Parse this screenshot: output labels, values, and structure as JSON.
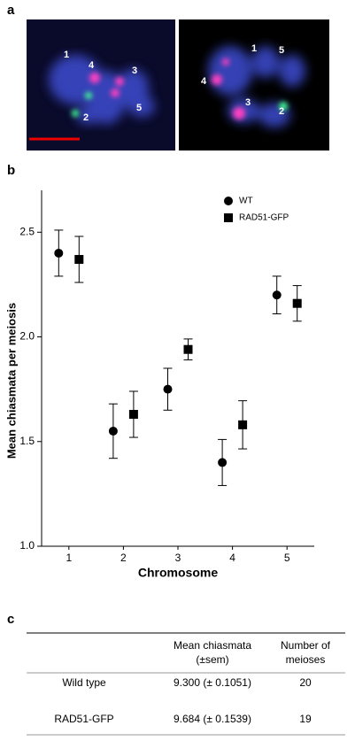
{
  "panel_a": {
    "label": "a",
    "left_image_labels": [
      "1",
      "4",
      "3",
      "2",
      "5"
    ],
    "right_image_labels": [
      "1",
      "5",
      "4",
      "3",
      "2"
    ]
  },
  "chart_data": {
    "type": "dot",
    "panel_label": "b",
    "y_label": "Mean chiasmata per meiosis",
    "x_label": "Chromosome",
    "categories": [
      "1",
      "2",
      "3",
      "4",
      "5"
    ],
    "series": [
      {
        "name": "WT",
        "color": "#000000",
        "marker": "circle",
        "values": [
          2.4,
          1.55,
          1.75,
          1.4,
          2.2
        ],
        "errors": [
          0.11,
          0.13,
          0.1,
          0.11,
          0.09
        ]
      },
      {
        "name": "RAD51-GFP",
        "color": "#000000",
        "marker": "square",
        "values": [
          2.37,
          1.63,
          1.94,
          1.58,
          2.16
        ],
        "errors": [
          0.11,
          0.11,
          0.05,
          0.115,
          0.085
        ]
      }
    ],
    "ylim": [
      1.0,
      2.7
    ],
    "yticks": [
      {
        "value": 1.0,
        "label": "1.0"
      },
      {
        "value": 1.5,
        "label": "1.5"
      },
      {
        "value": 2.0,
        "label": "2.0"
      },
      {
        "value": 2.5,
        "label": "2.5"
      }
    ],
    "legend": "upper right"
  },
  "panel_c": {
    "label": "c",
    "table": {
      "header": [
        [
          "Mean chiasmata",
          "(±sem)"
        ],
        [
          "Number of",
          "meioses"
        ]
      ],
      "rows": [
        [
          "Wild type",
          "9.300 (± 0.1051)",
          "20"
        ],
        [
          "RAD51-GFP",
          "9.684 (± 0.1539)",
          "19"
        ]
      ]
    }
  }
}
